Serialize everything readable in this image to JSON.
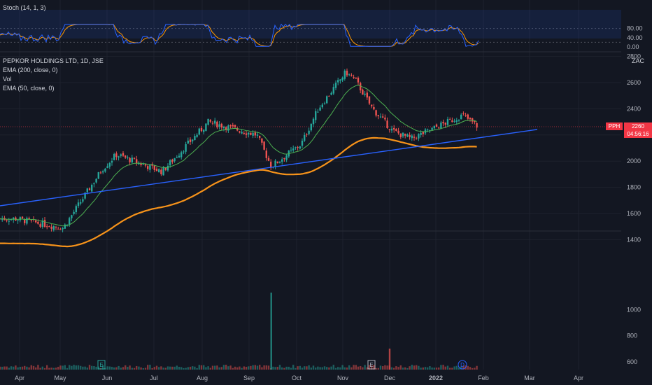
{
  "stoch_label": "Stoch (14, 1, 3)",
  "symbol_line": "PEPKOR HOLDINGS LTD, 1D, JSE",
  "indicators": [
    "EMA (200, close, 0)",
    "Vol",
    "EMA (50, close, 0)"
  ],
  "currency_unit": "ZAC",
  "price_tag": {
    "symbol": "PPH",
    "value": "2260",
    "countdown": "04:56:16"
  },
  "colors": {
    "up": "#26a69a",
    "down": "#ef5350",
    "ema200": "#f7931a",
    "ema50": "#4caf50",
    "trendline": "#2962ff",
    "stoch_k": "#2962ff",
    "stoch_d": "#ff9800"
  },
  "chart_data": {
    "type": "candlestick",
    "price_axis": {
      "ticks": [
        1400,
        1600,
        1800,
        2000,
        2200,
        2400,
        2600,
        2800
      ],
      "range": [
        1320,
        2790
      ]
    },
    "stoch_axis": {
      "ticks": [
        "0.00",
        "40.00",
        "80.00"
      ],
      "bands": [
        20,
        80
      ],
      "range": [
        0,
        100
      ]
    },
    "volume_axis": {
      "ticks": [
        600,
        800,
        1000
      ]
    },
    "x_ticks": [
      "Apr",
      "May",
      "Jun",
      "Jul",
      "Aug",
      "Sep",
      "Oct",
      "Nov",
      "Dec",
      "2022",
      "Feb",
      "Mar",
      "Apr"
    ],
    "events": [
      {
        "label": "E",
        "month": "Jun"
      },
      {
        "label": "E",
        "month": "Dec"
      },
      {
        "label": "D",
        "month": "2022"
      }
    ],
    "last_price": 2260,
    "key_prices": [
      {
        "date": "2021-04-01",
        "close": 1560
      },
      {
        "date": "2021-05-03",
        "close": 1490
      },
      {
        "date": "2021-05-28",
        "close": 1940
      },
      {
        "date": "2021-06-07",
        "close": 2050
      },
      {
        "date": "2021-07-06",
        "close": 1920
      },
      {
        "date": "2021-08-05",
        "close": 2300
      },
      {
        "date": "2021-09-06",
        "close": 2200
      },
      {
        "date": "2021-09-15",
        "close": 1960
      },
      {
        "date": "2021-10-04",
        "close": 2130
      },
      {
        "date": "2021-10-15",
        "close": 2400
      },
      {
        "date": "2021-11-03",
        "close": 2680
      },
      {
        "date": "2021-11-09",
        "close": 2620
      },
      {
        "date": "2021-11-20",
        "close": 2400
      },
      {
        "date": "2021-12-03",
        "close": 2230
      },
      {
        "date": "2021-12-15",
        "close": 2170
      },
      {
        "date": "2022-01-03",
        "close": 2270
      },
      {
        "date": "2022-01-18",
        "close": 2350
      },
      {
        "date": "2022-01-28",
        "close": 2260
      }
    ]
  }
}
